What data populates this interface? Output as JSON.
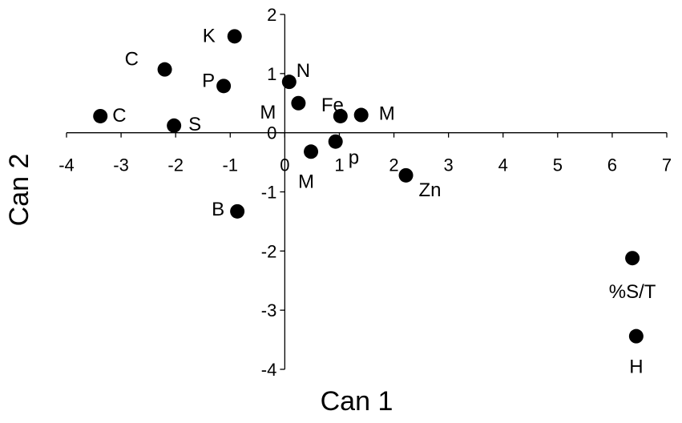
{
  "chart_data": {
    "type": "scatter",
    "xlabel": "Can 1",
    "ylabel": "Can 2",
    "xlim": [
      -4,
      7
    ],
    "ylim": [
      -4,
      2
    ],
    "x_ticks": [
      -4,
      -3,
      -2,
      -1,
      0,
      1,
      2,
      3,
      4,
      5,
      6,
      7
    ],
    "y_ticks": [
      -4,
      -3,
      -2,
      -1,
      0,
      1,
      2
    ],
    "grid": false,
    "legend": "none",
    "marker_color": "#000000",
    "points": [
      {
        "label": "K",
        "x": -0.92,
        "y": 1.63
      },
      {
        "label": "C",
        "x": -2.2,
        "y": 1.07
      },
      {
        "label": "P",
        "x": -1.12,
        "y": 0.79
      },
      {
        "label": "N",
        "x": 0.08,
        "y": 0.86
      },
      {
        "label": "C",
        "x": -3.38,
        "y": 0.28
      },
      {
        "label": "S",
        "x": -2.03,
        "y": 0.12
      },
      {
        "label": "M",
        "x": 0.25,
        "y": 0.5
      },
      {
        "label": "Fe",
        "x": 1.02,
        "y": 0.28
      },
      {
        "label": "M",
        "x": 1.4,
        "y": 0.3
      },
      {
        "label": "M",
        "x": 0.48,
        "y": -0.32
      },
      {
        "label": "p",
        "x": 0.93,
        "y": -0.15
      },
      {
        "label": "Zn",
        "x": 2.22,
        "y": -0.72
      },
      {
        "label": "B",
        "x": -0.87,
        "y": -1.33
      },
      {
        "label": "%S/T",
        "x": 6.37,
        "y": -2.12
      },
      {
        "label": "H",
        "x": 6.44,
        "y": -3.44
      }
    ]
  }
}
